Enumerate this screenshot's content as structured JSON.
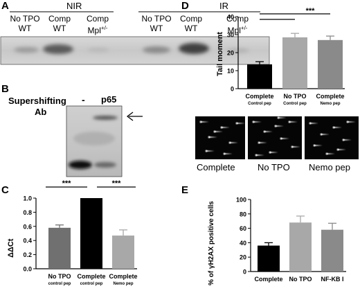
{
  "panels": {
    "A": {
      "letter": "A",
      "groups": [
        "NIR",
        "IR"
      ],
      "lanes": [
        {
          "line1": "No TPO",
          "line2": "WT"
        },
        {
          "line1": "Comp",
          "line2": "WT"
        },
        {
          "line1": "Comp",
          "line2": "Mpl",
          "sup": "+/-"
        },
        {
          "line1": "No TPO",
          "line2": "WT"
        },
        {
          "line1": "Comp",
          "line2": "WT"
        },
        {
          "line1": "Comp",
          "line2": "Mpl",
          "sup": "+/-"
        }
      ]
    },
    "B": {
      "letter": "B",
      "label_line1": "Supershifting",
      "label_line2": "Ab",
      "lane_labels": [
        "-",
        "p65"
      ]
    },
    "C": {
      "letter": "C",
      "ylabel": "ΔΔCt",
      "significance": [
        "***",
        "***"
      ]
    },
    "D": {
      "letter": "D",
      "ylabel": "Tail moment",
      "significance": "***",
      "image_labels": [
        "Complete",
        "No TPO",
        "Nemo pep"
      ]
    },
    "E": {
      "letter": "E",
      "ylabel": "% of γH2AX positive cells"
    }
  },
  "chart_data": [
    {
      "id": "C",
      "type": "bar",
      "categories": [
        {
          "main": "No TPO",
          "sub": "control pep"
        },
        {
          "main": "Complete",
          "sub": "control pep"
        },
        {
          "main": "Complete",
          "sub": "Nemo pep"
        }
      ],
      "values": [
        0.58,
        1.0,
        0.47
      ],
      "errors": [
        0.04,
        0,
        0.08
      ],
      "colors": [
        "#707070",
        "#000000",
        "#a8a8a8"
      ],
      "ylabel": "ΔΔCt",
      "ylim": [
        0,
        1.0
      ],
      "yticks": [
        "0.0",
        "0.2",
        "0.4",
        "0.6",
        "0.8",
        "1.0"
      ]
    },
    {
      "id": "D",
      "type": "bar",
      "categories": [
        {
          "main": "Complete",
          "sub": "Control pep"
        },
        {
          "main": "No TPO",
          "sub": "Control pep"
        },
        {
          "main": "Complete",
          "sub": "Nemo pep"
        }
      ],
      "values": [
        13.5,
        28.5,
        27
      ],
      "errors": [
        1.5,
        2.2,
        2.2
      ],
      "colors": [
        "#000000",
        "#a8a8a8",
        "#8a8a8a"
      ],
      "ylabel": "Tail moment",
      "ylim": [
        0,
        40
      ],
      "yticks": [
        "0",
        "10",
        "20",
        "30",
        "40"
      ]
    },
    {
      "id": "E",
      "type": "bar",
      "categories": [
        {
          "main": "Complete",
          "sub": ""
        },
        {
          "main": "No TPO",
          "sub": ""
        },
        {
          "main": "NF-KB I",
          "sub": ""
        }
      ],
      "values": [
        36,
        68,
        58
      ],
      "errors": [
        4,
        9,
        9
      ],
      "colors": [
        "#000000",
        "#a8a8a8",
        "#8a8a8a"
      ],
      "ylabel": "% of γH2AX positive cells",
      "ylim": [
        0,
        100
      ],
      "yticks": [
        "0",
        "20",
        "40",
        "60",
        "80",
        "100"
      ]
    }
  ]
}
